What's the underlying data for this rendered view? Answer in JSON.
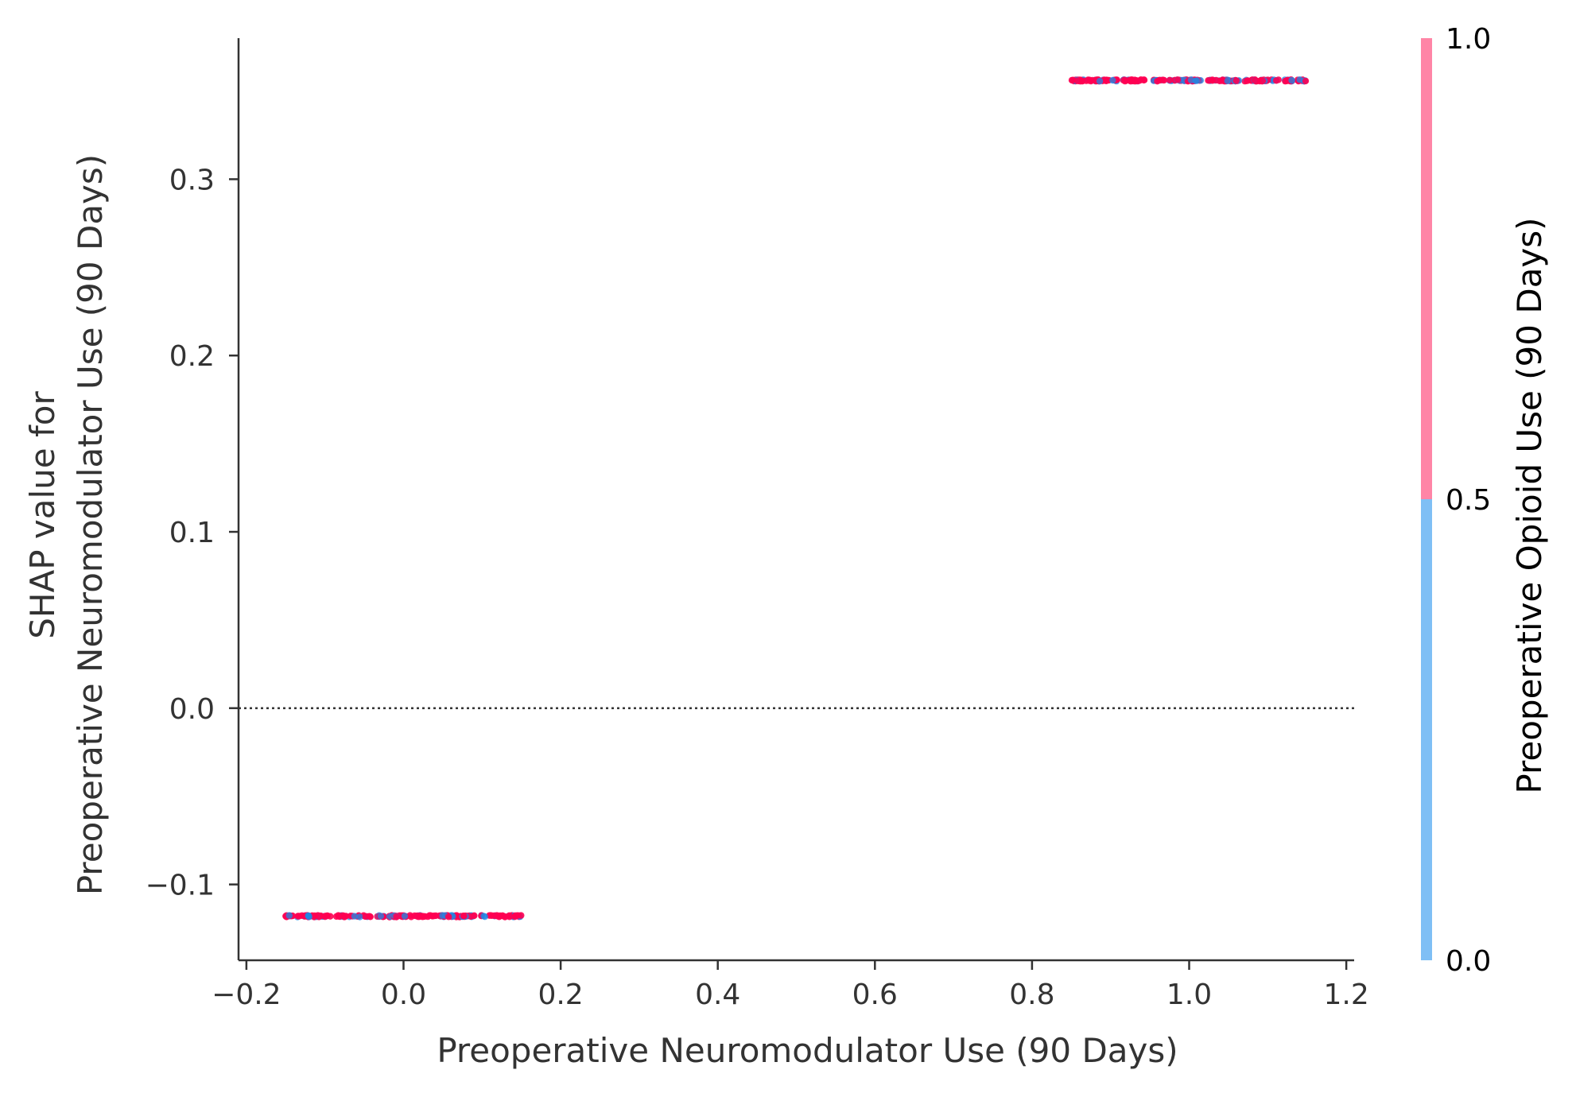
{
  "colors": {
    "axis": "#333333",
    "zero_line": "#333333",
    "low": "#7fbff5",
    "high": "#ff85a6",
    "point_high": "#ff0052",
    "point_low": "#1e88e5"
  },
  "chart_data": {
    "type": "scatter",
    "title": "",
    "xlabel": "Preoperative Neuromodulator Use (90 Days)",
    "ylabel_line1": "SHAP value for",
    "ylabel_line2": "Preoperative Neuromodulator Use (90 Days)",
    "xlim": [
      -0.21,
      1.21
    ],
    "ylim": [
      -0.143,
      0.38
    ],
    "x_ticks": [
      -0.2,
      0.0,
      0.2,
      0.4,
      0.6,
      0.8,
      1.0,
      1.2
    ],
    "x_tick_labels": [
      "−0.2",
      "0.0",
      "0.2",
      "0.4",
      "0.6",
      "0.8",
      "1.0",
      "1.2"
    ],
    "y_ticks": [
      -0.1,
      0.0,
      0.1,
      0.2,
      0.3
    ],
    "y_tick_labels": [
      "−0.1",
      "0.0",
      "0.1",
      "0.2",
      "0.3"
    ],
    "zero_line": {
      "y": 0.0,
      "style": "dotted"
    },
    "clusters": [
      {
        "x_min": -0.15,
        "x_max": 0.15,
        "shap": -0.118
      },
      {
        "x_min": 0.85,
        "x_max": 1.15,
        "shap": 0.356
      }
    ],
    "colorbar": {
      "label": "Preoperative Opioid Use (90 Days)",
      "range": [
        0.0,
        1.0
      ],
      "ticks": [
        0.0,
        0.5,
        1.0
      ],
      "tick_labels": [
        "0.0",
        "0.5",
        "1.0"
      ]
    }
  }
}
